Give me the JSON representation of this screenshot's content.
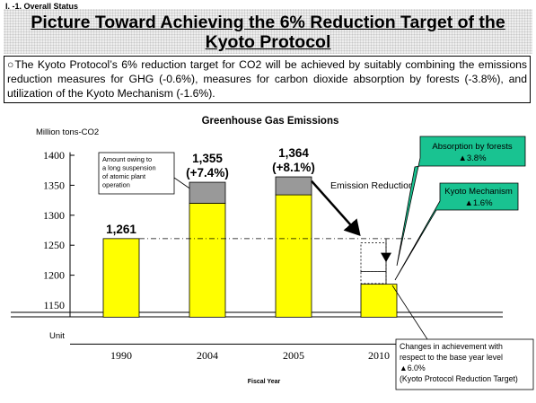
{
  "header": {
    "section_label": "I. -1. Overall Status",
    "title_line1": "Picture Toward Achieving the 6% Reduction Target of the",
    "title_line2": "Kyoto Protocol"
  },
  "summary": {
    "text": "○The Kyoto Protocol’s 6% reduction target for CO2 will be achieved by suitably combining the emissions reduction measures for GHG (-0.6%), measures for carbon dioxide absorption by forests (-3.8%), and utilization of the Kyoto Mechanism (-1.6%)."
  },
  "chart_data": {
    "type": "bar",
    "title": "Greenhouse Gas Emissions",
    "ylabel": "Million tons-CO2",
    "xlabel": "Fiscal Year",
    "unit_label": "Unit",
    "categories": [
      "1990",
      "2004",
      "2005",
      "2010"
    ],
    "yticks": [
      1150,
      1200,
      1250,
      1300,
      1350,
      1400
    ],
    "ylim": [
      1130,
      1405
    ],
    "series": [
      {
        "values": [
          1261,
          1320,
          1334,
          1185
        ],
        "color": "#ffff00"
      },
      {
        "values": [
          0,
          35,
          30,
          0
        ],
        "color": "#999999"
      }
    ],
    "bar_labels": [
      {
        "category": "1990",
        "value": 1261,
        "lines": [
          "1,261"
        ]
      },
      {
        "category": "2004",
        "value": 1355,
        "lines": [
          "1,355",
          "(+7.4%)"
        ]
      },
      {
        "category": "2005",
        "value": 1364,
        "lines": [
          "1,364",
          "(+8.1%)"
        ]
      }
    ],
    "target_2010": {
      "base_level": 1261,
      "forest_top": 1254,
      "forest_bottom": 1206,
      "mechanism_bottom": 1186
    },
    "annotations": {
      "suspension": "Amount owing to a long suspension of atomic plant operation",
      "emission_reduction": "Emission Reduction",
      "forests": {
        "title": "Absorption by forests",
        "value": "▲3.8%"
      },
      "mechanism": {
        "title": "Kyoto Mechanism",
        "value": "▲1.6%"
      },
      "target": {
        "line1": "Changes in achievement with",
        "line2": "respect to the base year level",
        "line3": "▲6.0%",
        "line4": "(Kyoto Protocol Reduction Target)"
      }
    },
    "colors": {
      "callout_fill": "#19c391"
    }
  }
}
